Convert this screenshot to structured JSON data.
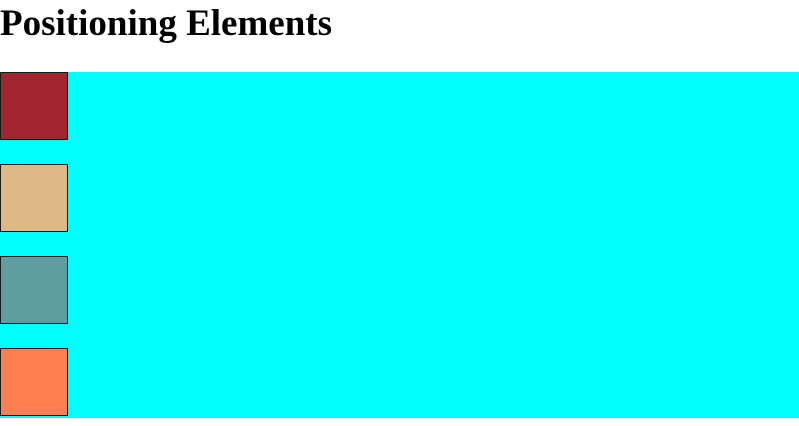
{
  "page": {
    "title": "Positioning Elements"
  },
  "container": {
    "background_color": "#00ffff"
  },
  "boxes": [
    {
      "color": "#a3262f"
    },
    {
      "color": "#deb887"
    },
    {
      "color": "#5f9ea0"
    },
    {
      "color": "#ff7f50"
    }
  ]
}
